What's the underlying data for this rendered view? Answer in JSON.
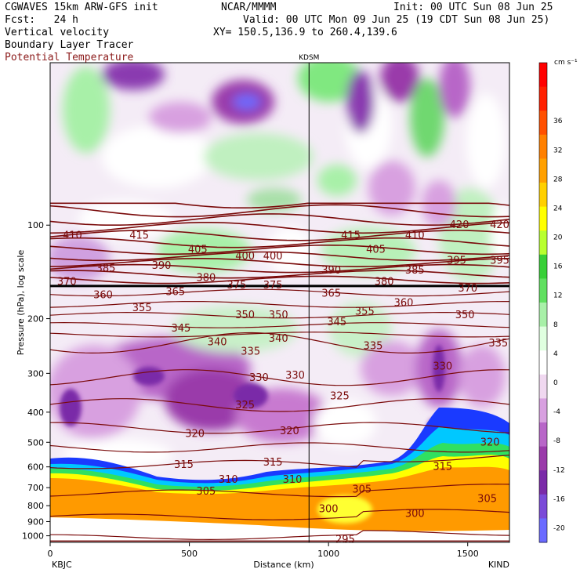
{
  "header": {
    "model": "CGWAVES 15km ARW-GFS init",
    "org": "NCAR/MMMM",
    "init": "Init: 00 UTC Sun 08 Jun 25",
    "fcst": "Fcst:   24 h",
    "valid": "Valid: 00 UTC Mon 09 Jun 25 (19 CDT Sun 08 Jun 25)",
    "field1": "Vertical velocity",
    "xy": "XY= 150.5,136.9 to 260.4,139.6",
    "field2": "Boundary Layer Tracer",
    "field3": "Potential Temperature"
  },
  "colors": {
    "theta": "#7a0a0a",
    "tropopause": "#000000"
  },
  "chart_data": {
    "type": "heatmap",
    "xlabel": "Distance (km)",
    "ylabel": "Pressure (hPa), log scale",
    "xlim": [
      0,
      1650
    ],
    "ylim": [
      1050,
      30
    ],
    "xticks": [
      0,
      500,
      1000,
      1500
    ],
    "yticks": [
      100,
      200,
      300,
      400,
      500,
      600,
      700,
      800,
      900,
      1000
    ],
    "endpoints": {
      "left": "KBJC",
      "right": "KIND"
    },
    "marker": {
      "label": "KDSM",
      "x_km": 930
    },
    "colorbar": {
      "unit": "cm s⁻¹",
      "levels": [
        -20,
        -16,
        -12,
        -8,
        -4,
        0,
        4,
        8,
        12,
        16,
        20,
        24,
        28,
        32,
        36
      ],
      "colors": [
        "#6a6aff",
        "#7a4ad8",
        "#7a2aa8",
        "#9a3aaa",
        "#b866c8",
        "#d8a0e0",
        "#f0d8f0",
        "#ffffff",
        "#e0ffe0",
        "#a8f0a8",
        "#60e060",
        "#38d038",
        "#b8ff30",
        "#ffff00",
        "#ffd000",
        "#ffa000",
        "#ff8000",
        "#ff5000",
        "#ff2000",
        "#ff0000"
      ]
    },
    "theta_labels": [
      {
        "x": 80,
        "p": 108,
        "v": "410"
      },
      {
        "x": 320,
        "p": 108,
        "v": "415"
      },
      {
        "x": 1080,
        "p": 108,
        "v": "415"
      },
      {
        "x": 1310,
        "p": 108,
        "v": "410"
      },
      {
        "x": 1470,
        "p": 100,
        "v": "420"
      },
      {
        "x": 1615,
        "p": 100,
        "v": "420"
      },
      {
        "x": 530,
        "p": 120,
        "v": "405"
      },
      {
        "x": 700,
        "p": 126,
        "v": "400"
      },
      {
        "x": 800,
        "p": 126,
        "v": "400"
      },
      {
        "x": 1170,
        "p": 120,
        "v": "405"
      },
      {
        "x": 1460,
        "p": 130,
        "v": "395"
      },
      {
        "x": 1615,
        "p": 130,
        "v": "395"
      },
      {
        "x": 200,
        "p": 138,
        "v": "385"
      },
      {
        "x": 400,
        "p": 135,
        "v": "390"
      },
      {
        "x": 560,
        "p": 148,
        "v": "380"
      },
      {
        "x": 1010,
        "p": 140,
        "v": "390"
      },
      {
        "x": 1200,
        "p": 152,
        "v": "380"
      },
      {
        "x": 1310,
        "p": 140,
        "v": "385"
      },
      {
        "x": 60,
        "p": 152,
        "v": "370"
      },
      {
        "x": 670,
        "p": 156,
        "v": "375"
      },
      {
        "x": 800,
        "p": 156,
        "v": "375"
      },
      {
        "x": 1500,
        "p": 160,
        "v": "370"
      },
      {
        "x": 190,
        "p": 168,
        "v": "360"
      },
      {
        "x": 450,
        "p": 164,
        "v": "365"
      },
      {
        "x": 1010,
        "p": 166,
        "v": "365"
      },
      {
        "x": 1270,
        "p": 178,
        "v": "360"
      },
      {
        "x": 330,
        "p": 185,
        "v": "355"
      },
      {
        "x": 1130,
        "p": 190,
        "v": "355"
      },
      {
        "x": 700,
        "p": 195,
        "v": "350"
      },
      {
        "x": 820,
        "p": 195,
        "v": "350"
      },
      {
        "x": 1490,
        "p": 195,
        "v": "350"
      },
      {
        "x": 470,
        "p": 215,
        "v": "345"
      },
      {
        "x": 1030,
        "p": 205,
        "v": "345"
      },
      {
        "x": 600,
        "p": 238,
        "v": "340"
      },
      {
        "x": 820,
        "p": 232,
        "v": "340"
      },
      {
        "x": 720,
        "p": 255,
        "v": "335"
      },
      {
        "x": 1160,
        "p": 245,
        "v": "335"
      },
      {
        "x": 1610,
        "p": 240,
        "v": "335"
      },
      {
        "x": 750,
        "p": 310,
        "v": "330"
      },
      {
        "x": 880,
        "p": 305,
        "v": "330"
      },
      {
        "x": 1410,
        "p": 285,
        "v": "330"
      },
      {
        "x": 1040,
        "p": 355,
        "v": "325"
      },
      {
        "x": 700,
        "p": 380,
        "v": "325"
      },
      {
        "x": 520,
        "p": 470,
        "v": "320"
      },
      {
        "x": 860,
        "p": 460,
        "v": "320"
      },
      {
        "x": 1580,
        "p": 500,
        "v": "320"
      },
      {
        "x": 480,
        "p": 590,
        "v": "315"
      },
      {
        "x": 800,
        "p": 580,
        "v": "315"
      },
      {
        "x": 1410,
        "p": 600,
        "v": "315"
      },
      {
        "x": 640,
        "p": 660,
        "v": "310"
      },
      {
        "x": 870,
        "p": 660,
        "v": "310"
      },
      {
        "x": 560,
        "p": 720,
        "v": "305"
      },
      {
        "x": 1120,
        "p": 710,
        "v": "305"
      },
      {
        "x": 1570,
        "p": 760,
        "v": "305"
      },
      {
        "x": 1000,
        "p": 820,
        "v": "300"
      },
      {
        "x": 1310,
        "p": 850,
        "v": "300"
      },
      {
        "x": 1060,
        "p": 1030,
        "v": "295"
      }
    ]
  }
}
